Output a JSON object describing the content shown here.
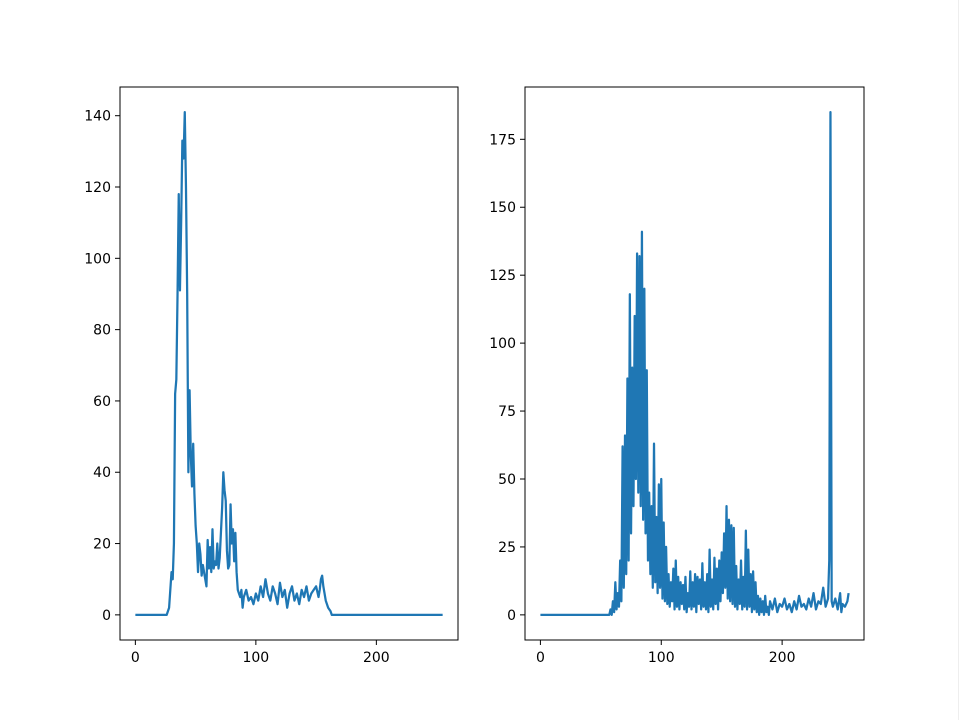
{
  "chart_data": [
    {
      "type": "line",
      "color": "#1f77b4",
      "x": [
        0,
        26,
        28,
        30,
        31,
        32,
        33,
        34,
        35,
        36,
        37,
        38,
        39,
        40,
        41,
        42,
        43,
        44,
        45,
        46,
        47,
        48,
        49,
        50,
        51,
        52,
        53,
        54,
        55,
        56,
        57,
        58,
        59,
        60,
        61,
        62,
        63,
        64,
        65,
        66,
        67,
        68,
        69,
        70,
        71,
        72,
        73,
        74,
        75,
        76,
        77,
        78,
        79,
        80,
        81,
        82,
        83,
        84,
        85,
        86,
        87,
        88,
        89,
        90,
        92,
        94,
        96,
        98,
        100,
        102,
        104,
        106,
        108,
        110,
        112,
        114,
        116,
        118,
        120,
        122,
        124,
        126,
        128,
        130,
        132,
        134,
        136,
        138,
        140,
        142,
        144,
        146,
        148,
        150,
        152,
        153,
        154,
        155,
        156,
        157,
        158,
        160,
        162,
        163,
        255
      ],
      "values": [
        0,
        0,
        2,
        12,
        10,
        20,
        62,
        66,
        90,
        118,
        91,
        110,
        133,
        128,
        141,
        120,
        90,
        40,
        63,
        45,
        36,
        48,
        34,
        25,
        20,
        12,
        20,
        17,
        11,
        14,
        12,
        10,
        8,
        21,
        13,
        19,
        12,
        24,
        13,
        15,
        14,
        20,
        13,
        16,
        23,
        30,
        40,
        35,
        32,
        18,
        13,
        14,
        31,
        20,
        24,
        15,
        23,
        12,
        7,
        6,
        5,
        7,
        2,
        5,
        7,
        4,
        5,
        3,
        6,
        4,
        8,
        5,
        10,
        6,
        4,
        8,
        6,
        3,
        9,
        5,
        7,
        2,
        6,
        8,
        4,
        6,
        3,
        7,
        5,
        8,
        4,
        6,
        7,
        8,
        5,
        7,
        10,
        11,
        8,
        6,
        4,
        2,
        1,
        0,
        0
      ],
      "xlim": [
        -12.75,
        267.75
      ],
      "ylim": [
        -7.05,
        148.05
      ],
      "xticks": [
        0,
        100,
        200
      ],
      "yticks": [
        0,
        20,
        40,
        60,
        80,
        100,
        120,
        140
      ]
    },
    {
      "type": "line",
      "color": "#1f77b4",
      "x": [
        0,
        55,
        56,
        57,
        58,
        59,
        60,
        61,
        62,
        63,
        64,
        65,
        66,
        67,
        68,
        69,
        70,
        71,
        72,
        73,
        74,
        75,
        76,
        77,
        78,
        79,
        80,
        81,
        82,
        83,
        84,
        85,
        86,
        87,
        88,
        89,
        90,
        91,
        92,
        93,
        94,
        95,
        96,
        97,
        98,
        99,
        100,
        101,
        102,
        103,
        104,
        105,
        106,
        107,
        108,
        109,
        110,
        111,
        112,
        113,
        114,
        115,
        116,
        117,
        118,
        119,
        120,
        121,
        122,
        123,
        124,
        125,
        126,
        127,
        128,
        129,
        130,
        131,
        132,
        133,
        134,
        135,
        136,
        137,
        138,
        139,
        140,
        141,
        142,
        143,
        144,
        145,
        146,
        147,
        148,
        149,
        150,
        151,
        152,
        153,
        154,
        155,
        156,
        157,
        158,
        159,
        160,
        161,
        162,
        163,
        164,
        165,
        166,
        167,
        168,
        169,
        170,
        171,
        172,
        173,
        174,
        175,
        176,
        177,
        178,
        179,
        180,
        181,
        182,
        183,
        184,
        185,
        186,
        187,
        188,
        189,
        190,
        192,
        194,
        196,
        198,
        200,
        202,
        204,
        206,
        208,
        210,
        212,
        214,
        216,
        218,
        220,
        222,
        224,
        226,
        228,
        230,
        232,
        234,
        236,
        238,
        239,
        240,
        241,
        242,
        244,
        246,
        248,
        249,
        250,
        252,
        254,
        255
      ],
      "values": [
        0,
        0,
        0,
        0,
        2,
        0,
        5,
        1,
        12,
        2,
        8,
        3,
        20,
        5,
        62,
        10,
        66,
        15,
        87,
        20,
        118,
        30,
        91,
        40,
        110,
        50,
        133,
        45,
        132,
        40,
        141,
        35,
        120,
        30,
        90,
        20,
        45,
        15,
        40,
        10,
        63,
        12,
        36,
        8,
        48,
        10,
        50,
        6,
        34,
        5,
        25,
        4,
        15,
        3,
        12,
        5,
        17,
        2,
        20,
        3,
        14,
        2,
        12,
        4,
        11,
        2,
        14,
        1,
        8,
        3,
        16,
        2,
        12,
        3,
        15,
        1,
        14,
        4,
        13,
        2,
        19,
        3,
        12,
        2,
        15,
        1,
        24,
        3,
        13,
        2,
        21,
        4,
        17,
        2,
        20,
        5,
        23,
        8,
        30,
        10,
        40,
        6,
        35,
        5,
        33,
        4,
        32,
        3,
        18,
        2,
        13,
        4,
        20,
        2,
        14,
        3,
        31,
        2,
        24,
        3,
        15,
        1,
        16,
        2,
        12,
        1,
        7,
        0,
        6,
        1,
        5,
        0,
        7,
        1,
        3,
        0,
        5,
        2,
        6,
        1,
        4,
        3,
        6,
        2,
        4,
        1,
        5,
        2,
        7,
        3,
        4,
        2,
        6,
        3,
        8,
        2,
        5,
        4,
        10,
        3,
        6,
        20,
        185,
        5,
        3,
        6,
        2,
        8,
        1,
        4,
        3,
        5,
        8
      ],
      "xlim": [
        -12.75,
        267.75
      ],
      "ylim": [
        -9.25,
        194.25
      ],
      "xticks": [
        0,
        100,
        200
      ],
      "yticks": [
        0,
        25,
        50,
        75,
        100,
        125,
        150,
        175
      ]
    }
  ]
}
